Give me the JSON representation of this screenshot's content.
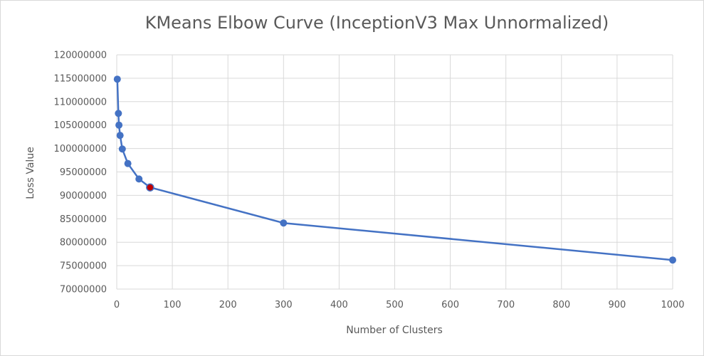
{
  "chart_data": {
    "type": "scatter",
    "title": "KMeans Elbow Curve (InceptionV3 Max Unnormalized)",
    "xlabel": "Number  of Clusters",
    "ylabel": "Loss Value",
    "xlim": [
      0,
      1000
    ],
    "ylim": [
      70000000,
      120000000
    ],
    "x_ticks": [
      0,
      100,
      200,
      300,
      400,
      500,
      600,
      700,
      800,
      900,
      1000
    ],
    "y_ticks": [
      70000000,
      75000000,
      80000000,
      85000000,
      90000000,
      95000000,
      100000000,
      105000000,
      110000000,
      115000000,
      120000000
    ],
    "grid": true,
    "legend": "none",
    "series": [
      {
        "x": [
          1,
          3,
          4,
          6,
          10,
          20,
          40,
          60,
          300,
          1000
        ],
        "y": [
          114800000,
          107500000,
          105000000,
          102800000,
          99900000,
          96800000,
          93500000,
          91700000,
          84100000,
          76200000
        ],
        "color": "#4472c4",
        "highlight_index": 7,
        "highlight_color": "#c00000"
      }
    ]
  }
}
